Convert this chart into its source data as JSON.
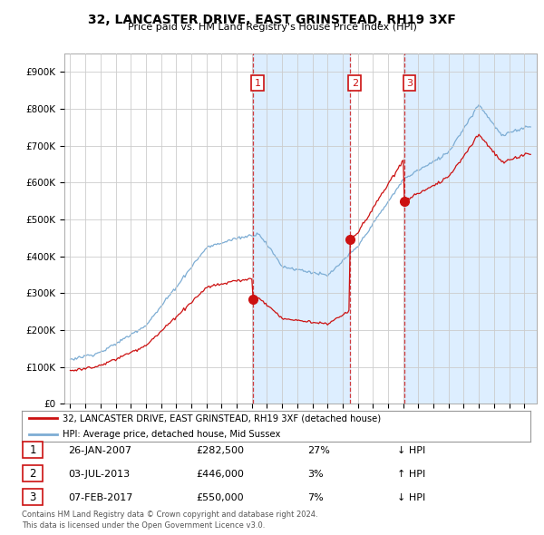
{
  "title": "32, LANCASTER DRIVE, EAST GRINSTEAD, RH19 3XF",
  "subtitle": "Price paid vs. HM Land Registry's House Price Index (HPI)",
  "legend_line1": "32, LANCASTER DRIVE, EAST GRINSTEAD, RH19 3XF (detached house)",
  "legend_line2": "HPI: Average price, detached house, Mid Sussex",
  "transactions": [
    {
      "num": 1,
      "date": "26-JAN-2007",
      "price": 282500,
      "pct": "27%",
      "dir": "↓",
      "x": 2007.08
    },
    {
      "num": 2,
      "date": "03-JUL-2013",
      "price": 446000,
      "pct": "3%",
      "dir": "↑",
      "x": 2013.5
    },
    {
      "num": 3,
      "date": "07-FEB-2017",
      "price": 550000,
      "pct": "7%",
      "dir": "↓",
      "x": 2017.1
    }
  ],
  "footer_line1": "Contains HM Land Registry data © Crown copyright and database right 2024.",
  "footer_line2": "This data is licensed under the Open Government Licence v3.0.",
  "hpi_color": "#7dadd4",
  "price_color": "#cc1111",
  "grid_color": "#cccccc",
  "shade_color": "#ddeeff",
  "background_color": "#ffffff",
  "ylim": [
    0,
    950000
  ],
  "yticks": [
    0,
    100000,
    200000,
    300000,
    400000,
    500000,
    600000,
    700000,
    800000,
    900000
  ],
  "xlim": [
    1994.6,
    2025.8
  ],
  "xticks": [
    1995,
    1996,
    1997,
    1998,
    1999,
    2000,
    2001,
    2002,
    2003,
    2004,
    2005,
    2006,
    2007,
    2008,
    2009,
    2010,
    2011,
    2012,
    2013,
    2014,
    2015,
    2016,
    2017,
    2018,
    2019,
    2020,
    2021,
    2022,
    2023,
    2024,
    2025
  ]
}
